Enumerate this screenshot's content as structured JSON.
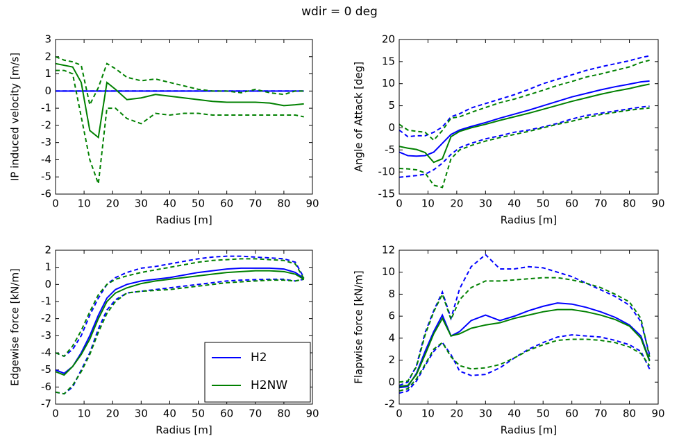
{
  "title": "wdir = 0 deg",
  "chart_data": [
    {
      "type": "line",
      "ylabel": "IP induced velocity [m/s]",
      "xlabel": "Radius [m]",
      "x": [
        0,
        3,
        6,
        9,
        12,
        15,
        18,
        21,
        25,
        30,
        35,
        40,
        45,
        50,
        55,
        60,
        65,
        70,
        75,
        80,
        84,
        87
      ],
      "xlim": [
        0,
        90
      ],
      "xticks": [
        0,
        10,
        20,
        30,
        40,
        50,
        60,
        70,
        80,
        90
      ],
      "ylim": [
        -6,
        3
      ],
      "yticks": [
        -6,
        -5,
        -4,
        -3,
        -2,
        -1,
        0,
        1,
        2,
        3
      ],
      "series": [
        {
          "name": "H2",
          "color": "#0000ff",
          "values": [
            0,
            0,
            0,
            0,
            0,
            0,
            0,
            0,
            0,
            0,
            0,
            0,
            0,
            0,
            0,
            0,
            0,
            0,
            0,
            0,
            0,
            0
          ],
          "max": [
            0,
            0,
            0,
            0,
            0,
            0,
            0,
            0,
            0,
            0,
            0,
            0,
            0,
            0,
            0,
            0,
            0,
            0,
            0,
            0,
            0,
            0
          ],
          "min": [
            0,
            0,
            0,
            0,
            0,
            0,
            0,
            0,
            0,
            0,
            0,
            0,
            0,
            0,
            0,
            0,
            0,
            0,
            0,
            0,
            0,
            0
          ]
        },
        {
          "name": "H2NW",
          "color": "#008000",
          "values": [
            1.6,
            1.5,
            1.4,
            0.5,
            -2.3,
            -2.7,
            0.5,
            0.1,
            -0.5,
            -0.4,
            -0.2,
            -0.3,
            -0.4,
            -0.5,
            -0.6,
            -0.65,
            -0.65,
            -0.65,
            -0.7,
            -0.85,
            -0.8,
            -0.75
          ],
          "max": [
            2.0,
            1.8,
            1.7,
            1.5,
            -0.8,
            0.2,
            1.6,
            1.3,
            0.8,
            0.6,
            0.7,
            0.5,
            0.3,
            0.1,
            0.0,
            0.0,
            -0.1,
            0.1,
            -0.1,
            -0.2,
            0.0,
            0.0
          ],
          "min": [
            1.2,
            1.2,
            1.0,
            -1.5,
            -4.0,
            -5.4,
            -1.0,
            -1.0,
            -1.6,
            -1.9,
            -1.3,
            -1.4,
            -1.3,
            -1.3,
            -1.4,
            -1.4,
            -1.4,
            -1.4,
            -1.4,
            -1.4,
            -1.4,
            -1.5
          ]
        }
      ]
    },
    {
      "type": "line",
      "ylabel": "Angle of Attack [deg]",
      "xlabel": "Radius [m]",
      "x": [
        0,
        3,
        6,
        9,
        12,
        15,
        18,
        21,
        25,
        30,
        35,
        40,
        45,
        50,
        55,
        60,
        65,
        70,
        75,
        80,
        84,
        87
      ],
      "xlim": [
        0,
        90
      ],
      "xticks": [
        0,
        10,
        20,
        30,
        40,
        50,
        60,
        70,
        80,
        90
      ],
      "ylim": [
        -15,
        20
      ],
      "yticks": [
        -15,
        -10,
        -5,
        0,
        5,
        10,
        15,
        20
      ],
      "series": [
        {
          "name": "H2",
          "color": "#0000ff",
          "values": [
            -5.5,
            -6.3,
            -6.4,
            -6.3,
            -5.5,
            -3.5,
            -1.5,
            -0.5,
            0.3,
            1.2,
            2.2,
            3.1,
            4.0,
            5.0,
            6.0,
            7.0,
            7.8,
            8.6,
            9.3,
            9.9,
            10.4,
            10.6
          ],
          "max": [
            -0.5,
            -2,
            -1.8,
            -1.8,
            -1.0,
            0.2,
            2.5,
            3.2,
            4.5,
            5.5,
            6.5,
            7.5,
            8.7,
            10,
            11,
            12,
            13,
            13.8,
            14.5,
            15.2,
            15.9,
            16.3
          ],
          "min": [
            -11.2,
            -11,
            -10.8,
            -10.5,
            -9.5,
            -8,
            -6,
            -4.5,
            -3.5,
            -2.5,
            -1.8,
            -1,
            -0.5,
            0.2,
            1,
            2,
            2.8,
            3.3,
            3.8,
            4.3,
            4.7,
            4.9
          ]
        },
        {
          "name": "H2NW",
          "color": "#008000",
          "values": [
            -4.2,
            -4.6,
            -4.9,
            -5.6,
            -7.8,
            -7.0,
            -2.0,
            -0.8,
            0,
            0.8,
            1.7,
            2.5,
            3.3,
            4.2,
            5.1,
            6.0,
            6.8,
            7.6,
            8.3,
            8.9,
            9.5,
            9.9
          ],
          "max": [
            0.8,
            -0.5,
            -0.8,
            -1.0,
            -2.8,
            -0.6,
            2.2,
            2.5,
            3.5,
            4.6,
            5.7,
            6.5,
            7.5,
            8.5,
            9.6,
            10.5,
            11.5,
            12.2,
            13,
            13.8,
            14.8,
            15.3
          ],
          "min": [
            -9.2,
            -9.3,
            -9.5,
            -10.2,
            -13,
            -13.5,
            -7,
            -5,
            -4,
            -3,
            -2.2,
            -1.5,
            -0.8,
            0,
            0.8,
            1.5,
            2.3,
            3,
            3.5,
            4,
            4.3,
            4.5
          ]
        }
      ]
    },
    {
      "type": "line",
      "ylabel": "Edgewise force [kN/m]",
      "xlabel": "Radius [m]",
      "legend": "lower right",
      "x": [
        0,
        3,
        6,
        9,
        12,
        15,
        18,
        21,
        25,
        30,
        35,
        40,
        45,
        50,
        55,
        60,
        65,
        70,
        75,
        80,
        84,
        87
      ],
      "xlim": [
        0,
        90
      ],
      "xticks": [
        0,
        10,
        20,
        30,
        40,
        50,
        60,
        70,
        80,
        90
      ],
      "ylim": [
        -7,
        2
      ],
      "yticks": [
        -7,
        -6,
        -5,
        -4,
        -3,
        -2,
        -1,
        0,
        1,
        2
      ],
      "series": [
        {
          "name": "H2",
          "color": "#0000ff",
          "values": [
            -5.0,
            -5.2,
            -4.8,
            -4.0,
            -3.0,
            -1.8,
            -0.8,
            -0.3,
            0.0,
            0.2,
            0.3,
            0.4,
            0.55,
            0.7,
            0.8,
            0.9,
            0.95,
            0.95,
            0.95,
            0.9,
            0.7,
            0.35
          ],
          "max": [
            -4,
            -4.2,
            -3.8,
            -3.0,
            -1.8,
            -0.8,
            0.0,
            0.4,
            0.7,
            0.95,
            1.05,
            1.2,
            1.35,
            1.5,
            1.6,
            1.65,
            1.65,
            1.6,
            1.55,
            1.5,
            1.3,
            0.4
          ],
          "min": [
            -6.3,
            -6.4,
            -6.0,
            -5.0,
            -4.0,
            -2.6,
            -1.5,
            -0.9,
            -0.5,
            -0.4,
            -0.3,
            -0.2,
            -0.1,
            0.0,
            0.1,
            0.2,
            0.25,
            0.28,
            0.3,
            0.3,
            0.2,
            0.3
          ]
        },
        {
          "name": "H2NW",
          "color": "#008000",
          "values": [
            -5.1,
            -5.3,
            -4.8,
            -4.1,
            -3.2,
            -2.0,
            -1.0,
            -0.5,
            -0.2,
            0.05,
            0.2,
            0.3,
            0.4,
            0.5,
            0.6,
            0.7,
            0.75,
            0.8,
            0.8,
            0.75,
            0.6,
            0.3
          ],
          "max": [
            -4.0,
            -4.2,
            -3.6,
            -2.7,
            -1.6,
            -0.6,
            0.0,
            0.3,
            0.5,
            0.7,
            0.85,
            1.0,
            1.15,
            1.3,
            1.4,
            1.45,
            1.5,
            1.5,
            1.45,
            1.4,
            1.2,
            0.35
          ],
          "min": [
            -6.3,
            -6.4,
            -5.9,
            -5.1,
            -4.1,
            -2.8,
            -1.7,
            -1.0,
            -0.5,
            -0.4,
            -0.35,
            -0.3,
            -0.2,
            -0.1,
            0.0,
            0.1,
            0.15,
            0.2,
            0.25,
            0.25,
            0.2,
            0.3
          ]
        }
      ]
    },
    {
      "type": "line",
      "ylabel": "Flapwise force [kN/m]",
      "xlabel": "Radius [m]",
      "x": [
        0,
        3,
        6,
        9,
        12,
        15,
        18,
        21,
        25,
        30,
        35,
        40,
        45,
        50,
        55,
        60,
        65,
        70,
        75,
        80,
        84,
        87
      ],
      "xlim": [
        0,
        90
      ],
      "xticks": [
        0,
        10,
        20,
        30,
        40,
        50,
        60,
        70,
        80,
        90
      ],
      "ylim": [
        -2,
        12
      ],
      "yticks": [
        -2,
        0,
        2,
        4,
        6,
        8,
        10,
        12
      ],
      "series": [
        {
          "name": "H2",
          "color": "#0000ff",
          "values": [
            -0.5,
            -0.4,
            0.8,
            2.8,
            4.6,
            6.1,
            4.2,
            4.6,
            5.6,
            6.1,
            5.6,
            6.0,
            6.5,
            6.9,
            7.2,
            7.1,
            6.8,
            6.4,
            5.9,
            5.2,
            4.2,
            2.0
          ],
          "max": [
            -0.3,
            0.0,
            1.5,
            4.5,
            6.5,
            8.2,
            5.8,
            8.5,
            10.5,
            11.6,
            10.3,
            10.3,
            10.5,
            10.4,
            10.0,
            9.6,
            9.0,
            8.4,
            7.8,
            7.0,
            5.5,
            2.5
          ],
          "min": [
            -1.0,
            -0.8,
            0.1,
            1.5,
            2.8,
            3.6,
            2.5,
            1.0,
            0.6,
            0.7,
            1.3,
            2.2,
            3.0,
            3.6,
            4.1,
            4.3,
            4.2,
            4.1,
            3.8,
            3.4,
            2.8,
            1.2
          ]
        },
        {
          "name": "H2NW",
          "color": "#008000",
          "values": [
            -0.4,
            -0.3,
            0.7,
            2.5,
            4.4,
            5.8,
            4.2,
            4.4,
            4.9,
            5.2,
            5.4,
            5.8,
            6.1,
            6.4,
            6.6,
            6.6,
            6.4,
            6.1,
            5.7,
            5.1,
            4.0,
            1.9
          ],
          "max": [
            0,
            0.1,
            1.4,
            4.3,
            6.4,
            8.0,
            5.7,
            7.5,
            8.6,
            9.2,
            9.2,
            9.3,
            9.4,
            9.5,
            9.5,
            9.3,
            9.0,
            8.6,
            8.0,
            7.3,
            5.8,
            2.3
          ],
          "min": [
            -0.8,
            -0.6,
            0.3,
            1.6,
            3.0,
            3.6,
            2.3,
            1.5,
            1.2,
            1.3,
            1.6,
            2.2,
            2.9,
            3.4,
            3.8,
            3.9,
            3.9,
            3.8,
            3.6,
            3.2,
            2.6,
            1.5
          ]
        }
      ]
    }
  ]
}
